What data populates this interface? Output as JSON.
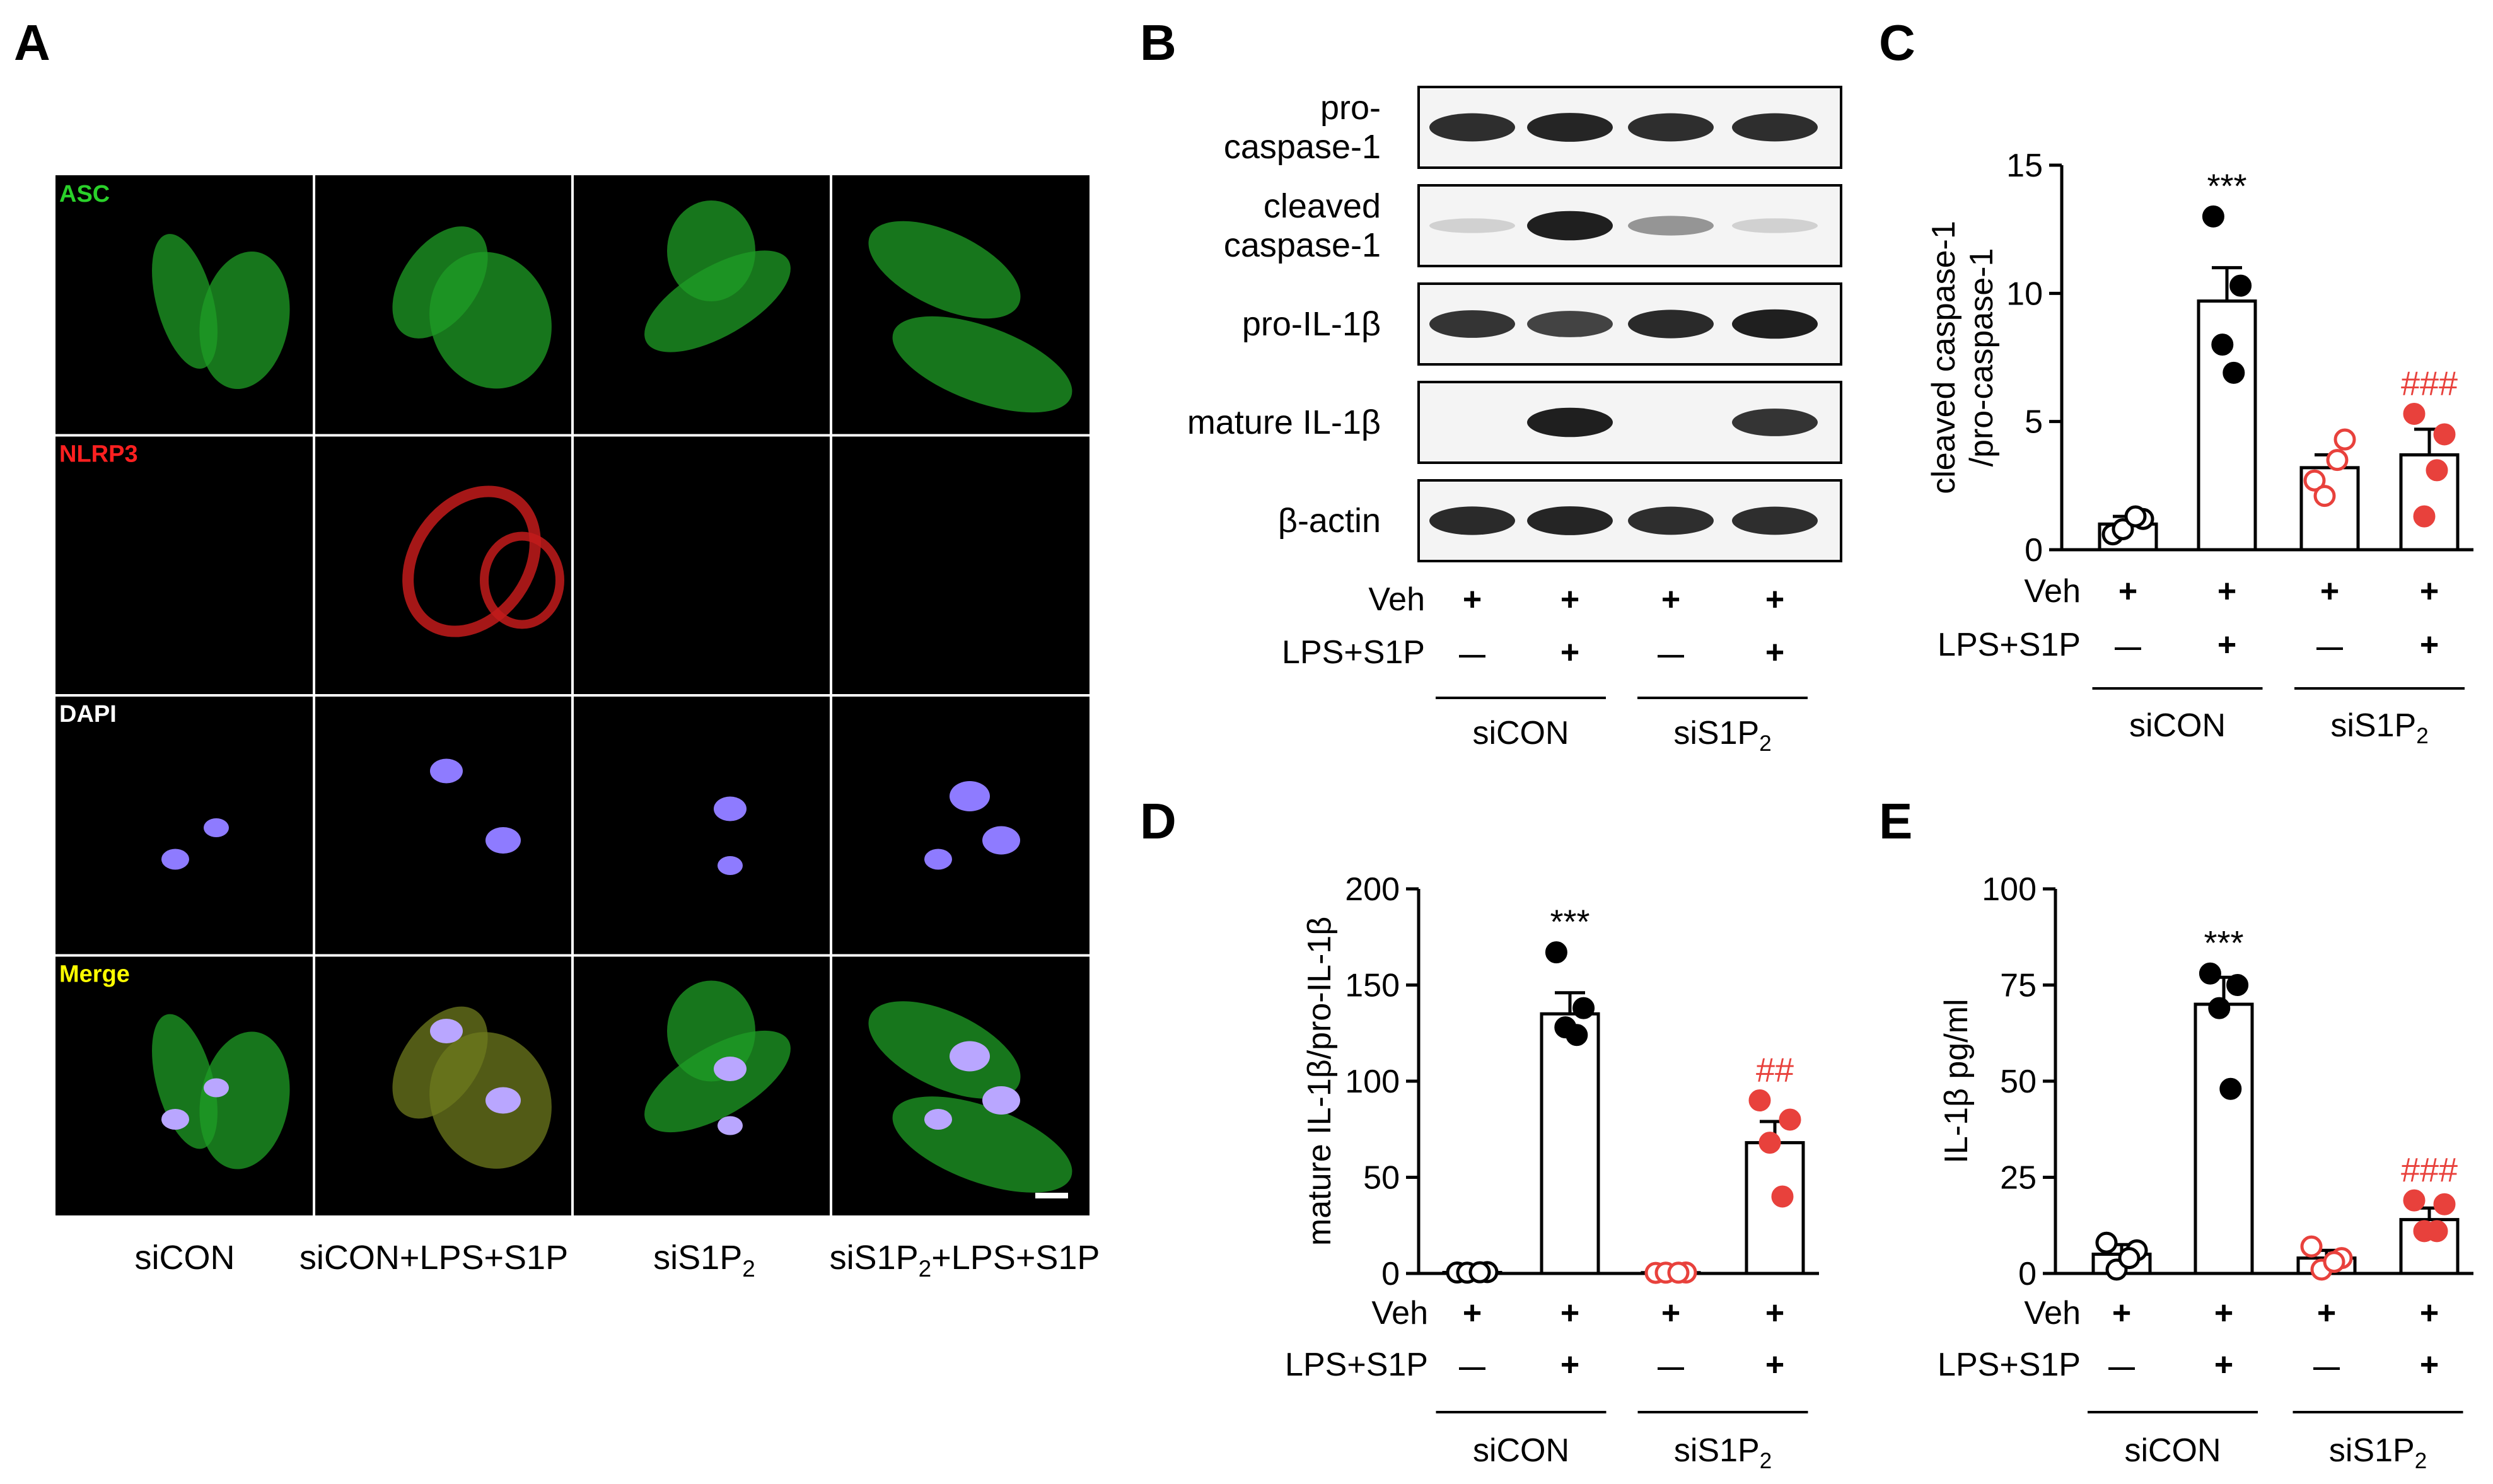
{
  "panels": {
    "A": {
      "letter": "A",
      "row_labels": [
        {
          "text": "ASC",
          "color": "#2ad12a"
        },
        {
          "text": "NLRP3",
          "color": "#ff2020"
        },
        {
          "text": "DAPI",
          "color": "#ffffff"
        },
        {
          "text": "Merge",
          "color": "#ffff00"
        }
      ],
      "columns": [
        {
          "base": "siCON",
          "sub": "",
          "tail": ""
        },
        {
          "base": "siCON+LPS+S1P",
          "sub": "",
          "tail": ""
        },
        {
          "base": "siS1P",
          "sub": "2",
          "tail": ""
        },
        {
          "base": "siS1P",
          "sub": "2",
          "tail": "+LPS+S1P"
        }
      ]
    },
    "B": {
      "letter": "B",
      "bands": [
        {
          "label": [
            "pro-",
            "caspase-1"
          ],
          "intensity": [
            0.88,
            0.92,
            0.88,
            0.88
          ]
        },
        {
          "label": [
            "cleaved",
            "caspase-1"
          ],
          "intensity": [
            0.12,
            0.95,
            0.4,
            0.12
          ]
        },
        {
          "label": [
            "pro-IL-1β"
          ],
          "intensity": [
            0.85,
            0.78,
            0.9,
            0.95
          ]
        },
        {
          "label": [
            "mature IL-1β"
          ],
          "intensity": [
            0.0,
            0.95,
            0.0,
            0.85
          ]
        },
        {
          "label": [
            "β-actin"
          ],
          "intensity": [
            0.9,
            0.92,
            0.88,
            0.88
          ]
        }
      ]
    }
  },
  "treatment": {
    "veh_label": "Veh",
    "lps_label": "LPS+S1P",
    "veh_marks": [
      "+",
      "+",
      "+",
      "+"
    ],
    "lps_marks": [
      "—",
      "+",
      "—",
      "+"
    ],
    "group1": {
      "base": "siCON",
      "sub": ""
    },
    "group2": {
      "base": "siS1P",
      "sub": "2"
    }
  },
  "colors": {
    "control": "#000000",
    "knockdown": "#e8413c"
  },
  "chart_data": [
    {
      "panel": "C",
      "type": "bar",
      "ylabel_lines": [
        "cleaved  caspase-1",
        "/pro-caspase-1"
      ],
      "ylim": [
        0,
        15
      ],
      "yticks": [
        0,
        5,
        10,
        15
      ],
      "categories": [
        "siCON Veh",
        "siCON LPS+S1P",
        "siS1P2 Veh",
        "siS1P2 LPS+S1P"
      ],
      "values": [
        1.0,
        9.7,
        3.2,
        3.7
      ],
      "errors": [
        0.3,
        1.3,
        0.5,
        1.0
      ],
      "points": [
        [
          0.6,
          1.2,
          0.8,
          1.3
        ],
        [
          13.0,
          10.3,
          8.0,
          6.9
        ],
        [
          2.7,
          4.3,
          2.1,
          3.5
        ],
        [
          5.3,
          4.5,
          1.3,
          3.1
        ]
      ],
      "annotations": [
        {
          "bar": 1,
          "text": "***",
          "color": "#000000"
        },
        {
          "bar": 3,
          "text": "###",
          "color": "#e8413c"
        }
      ]
    },
    {
      "panel": "D",
      "type": "bar",
      "ylabel_lines": [
        "mature IL-1β/pro-IL-1β"
      ],
      "ylim": [
        0,
        200
      ],
      "yticks": [
        0,
        50,
        100,
        150,
        200
      ],
      "categories": [
        "siCON Veh",
        "siCON LPS+S1P",
        "siS1P2 Veh",
        "siS1P2 LPS+S1P"
      ],
      "values": [
        0.5,
        135,
        0.4,
        68
      ],
      "errors": [
        0.5,
        11,
        0.4,
        11
      ],
      "points": [
        [
          0.5,
          0.7,
          0.4,
          0.6
        ],
        [
          167,
          138,
          128,
          124
        ],
        [
          0.3,
          0.5,
          0.4,
          0.4
        ],
        [
          90,
          80,
          68,
          40
        ]
      ],
      "annotations": [
        {
          "bar": 1,
          "text": "***",
          "color": "#000000"
        },
        {
          "bar": 3,
          "text": "##",
          "color": "#e8413c"
        }
      ]
    },
    {
      "panel": "E",
      "type": "bar",
      "ylabel_lines": [
        "IL-1β pg/ml"
      ],
      "ylim": [
        0,
        100
      ],
      "yticks": [
        0,
        25,
        50,
        75,
        100
      ],
      "categories": [
        "siCON Veh",
        "siCON LPS+S1P",
        "siS1P2 Veh",
        "siS1P2 LPS+S1P"
      ],
      "values": [
        5,
        70,
        4,
        14
      ],
      "errors": [
        2.5,
        7,
        2,
        3
      ],
      "points": [
        [
          8,
          6,
          1,
          4
        ],
        [
          78,
          75,
          69,
          48
        ],
        [
          7,
          4,
          1,
          3
        ],
        [
          19,
          18,
          11,
          11
        ]
      ],
      "annotations": [
        {
          "bar": 1,
          "text": "***",
          "color": "#000000"
        },
        {
          "bar": 3,
          "text": "###",
          "color": "#e8413c"
        }
      ]
    }
  ]
}
